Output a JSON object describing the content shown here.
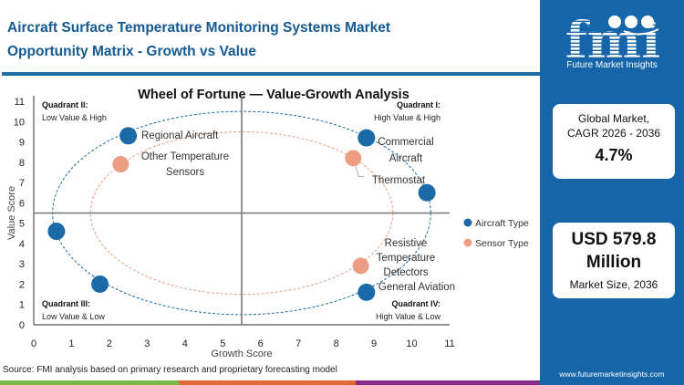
{
  "header": {
    "title_line1": "Aircraft Surface Temperature Monitoring Systems Market",
    "title_line2": "Opportunity Matrix - Growth vs Value"
  },
  "source": "Source: FMI analysis based on primary research and proprietary forecasting model",
  "sidebar": {
    "logo_text": "fmi",
    "logo_subtitle": "Future Market Insights",
    "card1": {
      "label_line1": "Global Market,",
      "label_line2": "CAGR 2026 - 2036",
      "value": "4.7%"
    },
    "card2": {
      "value_line1": "USD 579.8",
      "value_line2": "Million",
      "label": "Market Size, 2036"
    },
    "url": "www.futuremarketinsights.com"
  },
  "colors": {
    "brand": "#1565a8",
    "aircraft": "#1a6aa8",
    "sensor": "#ec9d82",
    "strip_green": "#7ab648",
    "strip_orange": "#e06a35",
    "strip_purple": "#8a2b8c"
  },
  "chart_data": {
    "type": "scatter",
    "title": "Wheel of Fortune — Value-Growth  Analysis",
    "xlabel": "Growth Score",
    "ylabel": "Value Score",
    "xlim": [
      0,
      11
    ],
    "ylim": [
      0,
      11
    ],
    "xticks": [
      0,
      1,
      2,
      3,
      4,
      5,
      6,
      7,
      8,
      9,
      10,
      11
    ],
    "yticks": [
      0,
      1,
      2,
      3,
      4,
      5,
      6,
      7,
      8,
      9,
      10,
      11
    ],
    "quadrant_dividers": {
      "x": 5.5,
      "y": 5.5
    },
    "quadrants": [
      {
        "title": "Quadrant II:",
        "subtitle": "Low Value & High",
        "position": "top-left"
      },
      {
        "title": "Quadrant I:",
        "subtitle": "High Value & High",
        "position": "top-right"
      },
      {
        "title": "Quadrant III:",
        "subtitle": "Low Value & Low",
        "position": "bottom-left"
      },
      {
        "title": "Quadrant IV:",
        "subtitle": "High Value & Low",
        "position": "bottom-right"
      }
    ],
    "legend_position": "right",
    "series": [
      {
        "name": "Aircraft Type",
        "color": "#1a6aa8",
        "ellipse": {
          "cx": 5.5,
          "cy": 5.5,
          "rx": 5,
          "ry": 5
        },
        "points": [
          {
            "x": 2.5,
            "y": 9.3,
            "label": "Regional Aircraft"
          },
          {
            "x": 8.8,
            "y": 9.2,
            "label": "Commercial Aircraft"
          },
          {
            "x": 10.4,
            "y": 6.5,
            "label": ""
          },
          {
            "x": 0.6,
            "y": 4.6,
            "label": ""
          },
          {
            "x": 1.75,
            "y": 2.0,
            "label": ""
          },
          {
            "x": 8.8,
            "y": 1.6,
            "label": "General Aviation"
          }
        ]
      },
      {
        "name": "Sensor Type",
        "color": "#ec9d82",
        "ellipse": {
          "cx": 5.5,
          "cy": 5.5,
          "rx": 4,
          "ry": 4
        },
        "points": [
          {
            "x": 2.3,
            "y": 7.9,
            "label": "Other Temperature Sensors"
          },
          {
            "x": 8.45,
            "y": 8.2,
            "label": "Thermostat"
          },
          {
            "x": 8.65,
            "y": 2.9,
            "label": "Resistive Temperature Detectors"
          }
        ]
      }
    ]
  }
}
